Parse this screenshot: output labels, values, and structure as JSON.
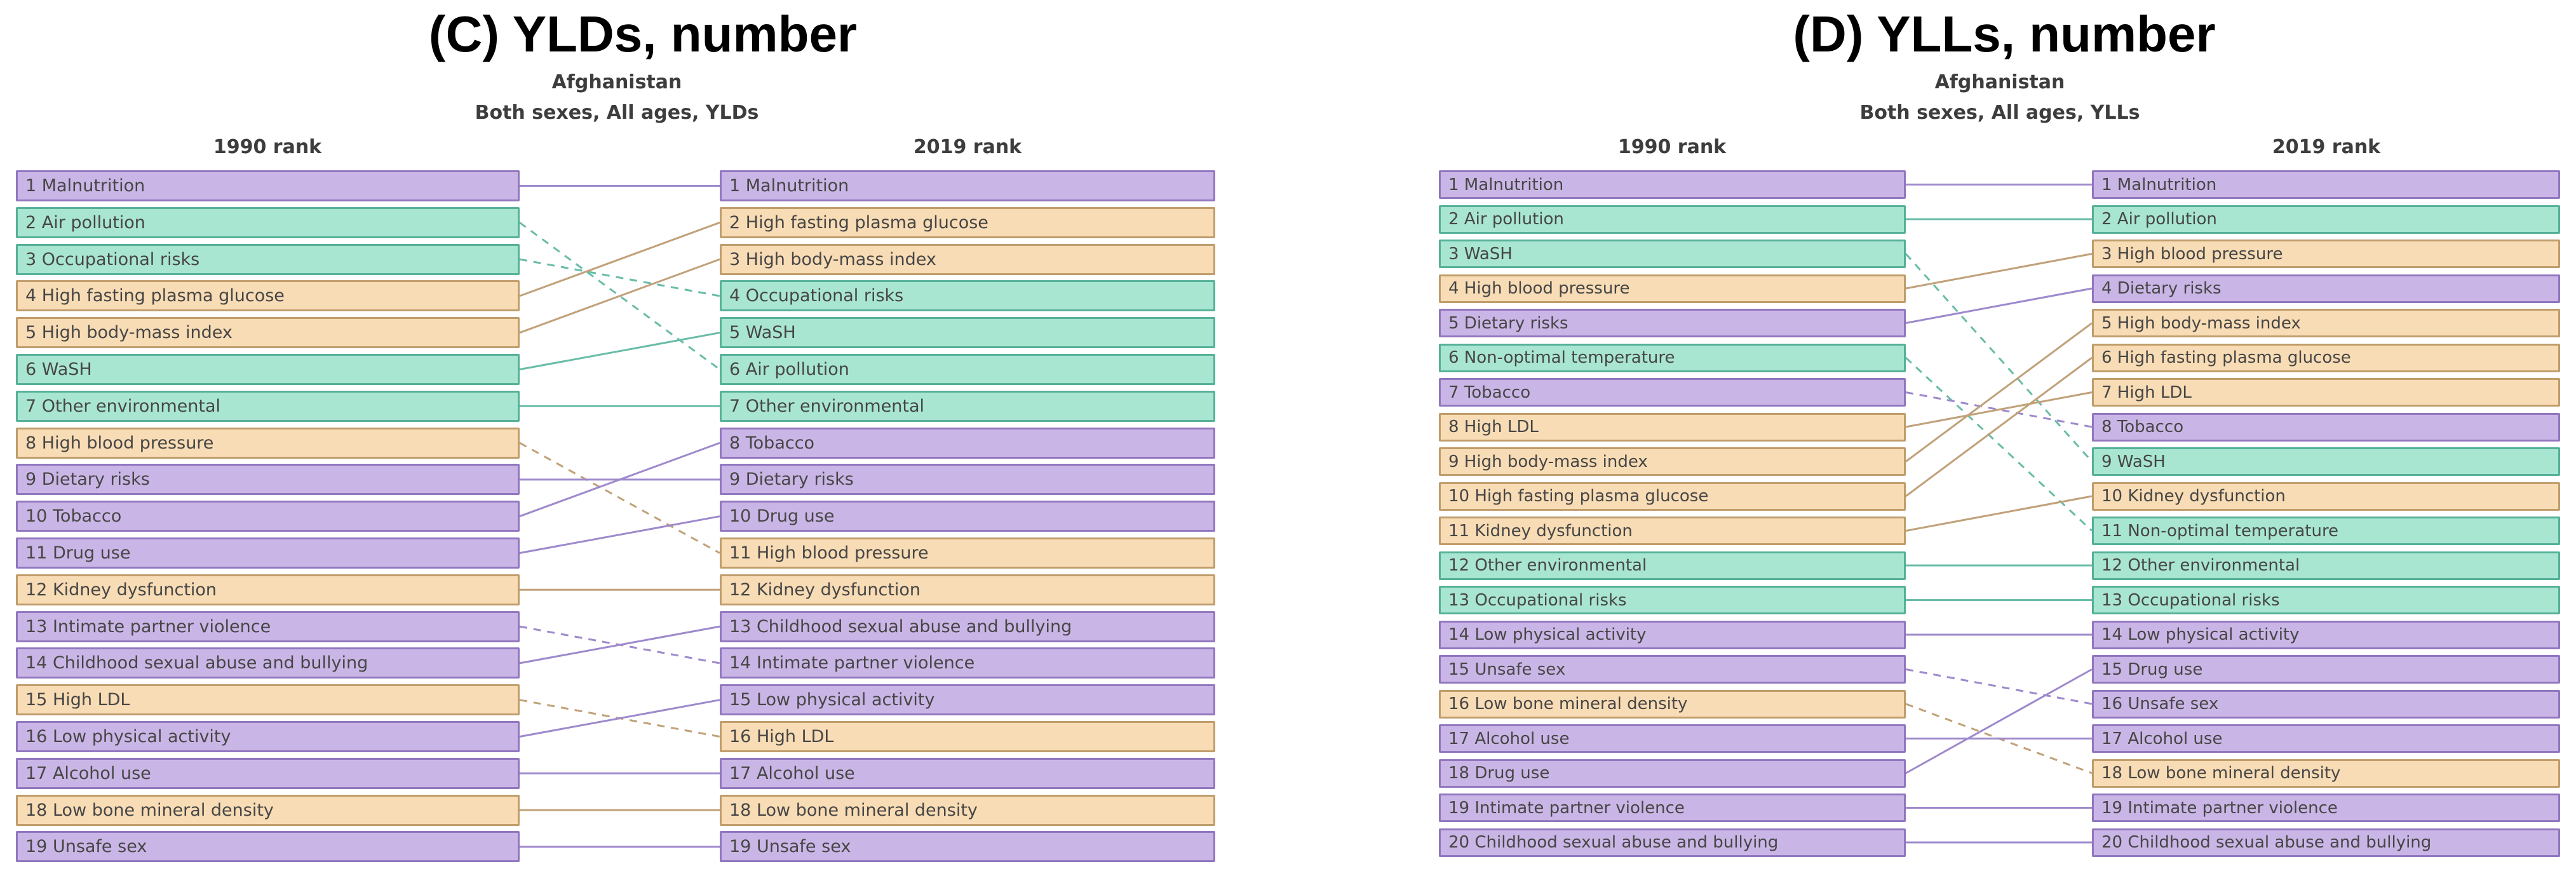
{
  "colors": {
    "behavioral": {
      "fill": "#cab6e6",
      "border": "#9277bf",
      "line": "#9e89cc"
    },
    "environmental": {
      "fill": "#a9e6d1",
      "border": "#56b198",
      "line": "#69bca8"
    },
    "metabolic": {
      "fill": "#f8dcb5",
      "border": "#c09d6c",
      "line": "#c0a179"
    },
    "box_text": "#464646",
    "title_text": "#000000",
    "subtitle_text": "#3d3d3d",
    "background": "#ffffff"
  },
  "chart_data": [
    {
      "type": "table",
      "title": "(C) YLDs, number",
      "subtitle": [
        "Afghanistan",
        "Both sexes, All ages, YLDs"
      ],
      "columns": [
        "1990 rank",
        "2019 rank"
      ],
      "legend_note": "solid line = rank unchanged or improved from 1990 to 2019; dashed line = rank worsened; color = risk group (purple behavioral, teal environmental/occupational, orange metabolic)",
      "rows_1990": [
        {
          "rank": 1,
          "label": "Malnutrition",
          "category": "behavioral",
          "rank_2019": 1,
          "line": "solid"
        },
        {
          "rank": 2,
          "label": "Air pollution",
          "category": "environmental",
          "rank_2019": 6,
          "line": "dashed"
        },
        {
          "rank": 3,
          "label": "Occupational risks",
          "category": "environmental",
          "rank_2019": 4,
          "line": "dashed"
        },
        {
          "rank": 4,
          "label": "High fasting plasma glucose",
          "category": "metabolic",
          "rank_2019": 2,
          "line": "solid"
        },
        {
          "rank": 5,
          "label": "High body-mass index",
          "category": "metabolic",
          "rank_2019": 3,
          "line": "solid"
        },
        {
          "rank": 6,
          "label": "WaSH",
          "category": "environmental",
          "rank_2019": 5,
          "line": "solid"
        },
        {
          "rank": 7,
          "label": "Other environmental",
          "category": "environmental",
          "rank_2019": 7,
          "line": "solid"
        },
        {
          "rank": 8,
          "label": "High blood pressure",
          "category": "metabolic",
          "rank_2019": 11,
          "line": "dashed"
        },
        {
          "rank": 9,
          "label": "Dietary risks",
          "category": "behavioral",
          "rank_2019": 9,
          "line": "solid"
        },
        {
          "rank": 10,
          "label": "Tobacco",
          "category": "behavioral",
          "rank_2019": 8,
          "line": "solid"
        },
        {
          "rank": 11,
          "label": "Drug use",
          "category": "behavioral",
          "rank_2019": 10,
          "line": "solid"
        },
        {
          "rank": 12,
          "label": "Kidney dysfunction",
          "category": "metabolic",
          "rank_2019": 12,
          "line": "solid"
        },
        {
          "rank": 13,
          "label": "Intimate partner violence",
          "category": "behavioral",
          "rank_2019": 14,
          "line": "dashed"
        },
        {
          "rank": 14,
          "label": "Childhood sexual abuse and bullying",
          "category": "behavioral",
          "rank_2019": 13,
          "line": "solid"
        },
        {
          "rank": 15,
          "label": "High LDL",
          "category": "metabolic",
          "rank_2019": 16,
          "line": "dashed"
        },
        {
          "rank": 16,
          "label": "Low physical activity",
          "category": "behavioral",
          "rank_2019": 15,
          "line": "solid"
        },
        {
          "rank": 17,
          "label": "Alcohol use",
          "category": "behavioral",
          "rank_2019": 17,
          "line": "solid"
        },
        {
          "rank": 18,
          "label": "Low bone mineral density",
          "category": "metabolic",
          "rank_2019": 18,
          "line": "solid"
        },
        {
          "rank": 19,
          "label": "Unsafe sex",
          "category": "behavioral",
          "rank_2019": 19,
          "line": "solid"
        }
      ],
      "rows_2019": [
        {
          "rank": 1,
          "label": "Malnutrition",
          "category": "behavioral"
        },
        {
          "rank": 2,
          "label": "High fasting plasma glucose",
          "category": "metabolic"
        },
        {
          "rank": 3,
          "label": "High body-mass index",
          "category": "metabolic"
        },
        {
          "rank": 4,
          "label": "Occupational risks",
          "category": "environmental"
        },
        {
          "rank": 5,
          "label": "WaSH",
          "category": "environmental"
        },
        {
          "rank": 6,
          "label": "Air pollution",
          "category": "environmental"
        },
        {
          "rank": 7,
          "label": "Other environmental",
          "category": "environmental"
        },
        {
          "rank": 8,
          "label": "Tobacco",
          "category": "behavioral"
        },
        {
          "rank": 9,
          "label": "Dietary risks",
          "category": "behavioral"
        },
        {
          "rank": 10,
          "label": "Drug use",
          "category": "behavioral"
        },
        {
          "rank": 11,
          "label": "High blood pressure",
          "category": "metabolic"
        },
        {
          "rank": 12,
          "label": "Kidney dysfunction",
          "category": "metabolic"
        },
        {
          "rank": 13,
          "label": "Childhood sexual abuse and bullying",
          "category": "behavioral"
        },
        {
          "rank": 14,
          "label": "Intimate partner violence",
          "category": "behavioral"
        },
        {
          "rank": 15,
          "label": "Low physical activity",
          "category": "behavioral"
        },
        {
          "rank": 16,
          "label": "High LDL",
          "category": "metabolic"
        },
        {
          "rank": 17,
          "label": "Alcohol use",
          "category": "behavioral"
        },
        {
          "rank": 18,
          "label": "Low bone mineral density",
          "category": "metabolic"
        },
        {
          "rank": 19,
          "label": "Unsafe sex",
          "category": "behavioral"
        }
      ]
    },
    {
      "type": "table",
      "title": "(D) YLLs, number",
      "subtitle": [
        "Afghanistan",
        "Both sexes, All ages, YLLs"
      ],
      "columns": [
        "1990 rank",
        "2019 rank"
      ],
      "legend_note": "solid line = rank unchanged or improved from 1990 to 2019; dashed line = rank worsened; color = risk group (purple behavioral, teal environmental/occupational, orange metabolic)",
      "rows_1990": [
        {
          "rank": 1,
          "label": "Malnutrition",
          "category": "behavioral",
          "rank_2019": 1,
          "line": "solid"
        },
        {
          "rank": 2,
          "label": "Air pollution",
          "category": "environmental",
          "rank_2019": 2,
          "line": "solid"
        },
        {
          "rank": 3,
          "label": "WaSH",
          "category": "environmental",
          "rank_2019": 9,
          "line": "dashed"
        },
        {
          "rank": 4,
          "label": "High blood pressure",
          "category": "metabolic",
          "rank_2019": 3,
          "line": "solid"
        },
        {
          "rank": 5,
          "label": "Dietary risks",
          "category": "behavioral",
          "rank_2019": 4,
          "line": "solid"
        },
        {
          "rank": 6,
          "label": "Non-optimal temperature",
          "category": "environmental",
          "rank_2019": 11,
          "line": "dashed"
        },
        {
          "rank": 7,
          "label": "Tobacco",
          "category": "behavioral",
          "rank_2019": 8,
          "line": "dashed"
        },
        {
          "rank": 8,
          "label": "High LDL",
          "category": "metabolic",
          "rank_2019": 7,
          "line": "solid"
        },
        {
          "rank": 9,
          "label": "High body-mass index",
          "category": "metabolic",
          "rank_2019": 5,
          "line": "solid"
        },
        {
          "rank": 10,
          "label": "High fasting plasma glucose",
          "category": "metabolic",
          "rank_2019": 6,
          "line": "solid"
        },
        {
          "rank": 11,
          "label": "Kidney dysfunction",
          "category": "metabolic",
          "rank_2019": 10,
          "line": "solid"
        },
        {
          "rank": 12,
          "label": "Other environmental",
          "category": "environmental",
          "rank_2019": 12,
          "line": "solid"
        },
        {
          "rank": 13,
          "label": "Occupational risks",
          "category": "environmental",
          "rank_2019": 13,
          "line": "solid"
        },
        {
          "rank": 14,
          "label": "Low physical activity",
          "category": "behavioral",
          "rank_2019": 14,
          "line": "solid"
        },
        {
          "rank": 15,
          "label": "Unsafe sex",
          "category": "behavioral",
          "rank_2019": 16,
          "line": "dashed"
        },
        {
          "rank": 16,
          "label": "Low bone mineral density",
          "category": "metabolic",
          "rank_2019": 18,
          "line": "dashed"
        },
        {
          "rank": 17,
          "label": "Alcohol use",
          "category": "behavioral",
          "rank_2019": 17,
          "line": "solid"
        },
        {
          "rank": 18,
          "label": "Drug use",
          "category": "behavioral",
          "rank_2019": 15,
          "line": "solid"
        },
        {
          "rank": 19,
          "label": "Intimate partner violence",
          "category": "behavioral",
          "rank_2019": 19,
          "line": "solid"
        },
        {
          "rank": 20,
          "label": "Childhood sexual abuse and bullying",
          "category": "behavioral",
          "rank_2019": 20,
          "line": "solid"
        }
      ],
      "rows_2019": [
        {
          "rank": 1,
          "label": "Malnutrition",
          "category": "behavioral"
        },
        {
          "rank": 2,
          "label": "Air pollution",
          "category": "environmental"
        },
        {
          "rank": 3,
          "label": "High blood pressure",
          "category": "metabolic"
        },
        {
          "rank": 4,
          "label": "Dietary risks",
          "category": "behavioral"
        },
        {
          "rank": 5,
          "label": "High body-mass index",
          "category": "metabolic"
        },
        {
          "rank": 6,
          "label": "High fasting plasma glucose",
          "category": "metabolic"
        },
        {
          "rank": 7,
          "label": "High LDL",
          "category": "metabolic"
        },
        {
          "rank": 8,
          "label": "Tobacco",
          "category": "behavioral"
        },
        {
          "rank": 9,
          "label": "WaSH",
          "category": "environmental"
        },
        {
          "rank": 10,
          "label": "Kidney dysfunction",
          "category": "metabolic"
        },
        {
          "rank": 11,
          "label": "Non-optimal temperature",
          "category": "environmental"
        },
        {
          "rank": 12,
          "label": "Other environmental",
          "category": "environmental"
        },
        {
          "rank": 13,
          "label": "Occupational risks",
          "category": "environmental"
        },
        {
          "rank": 14,
          "label": "Low physical activity",
          "category": "behavioral"
        },
        {
          "rank": 15,
          "label": "Drug use",
          "category": "behavioral"
        },
        {
          "rank": 16,
          "label": "Unsafe sex",
          "category": "behavioral"
        },
        {
          "rank": 17,
          "label": "Alcohol use",
          "category": "behavioral"
        },
        {
          "rank": 18,
          "label": "Low bone mineral density",
          "category": "metabolic"
        },
        {
          "rank": 19,
          "label": "Intimate partner violence",
          "category": "behavioral"
        },
        {
          "rank": 20,
          "label": "Childhood sexual abuse and bullying",
          "category": "behavioral"
        }
      ]
    }
  ]
}
